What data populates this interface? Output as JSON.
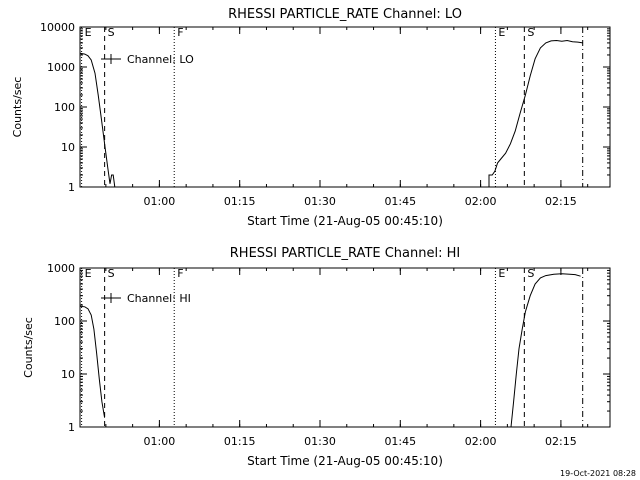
{
  "footer_timestamp": "19-Oct-2021 08:28",
  "colors": {
    "ink": "#000000",
    "paper": "#ffffff"
  },
  "chart_data": [
    {
      "type": "line",
      "title": "RHESSI PARTICLE_RATE Channel: LO",
      "xlabel": "Start Time (21-Aug-05 00:45:10)",
      "ylabel": "Counts/sec",
      "legend": "Channel: LO",
      "legend_position": "top-left",
      "y_scale": "log",
      "ylim": [
        1,
        10000
      ],
      "y_ticks": [
        {
          "value": 1,
          "label": "1"
        },
        {
          "value": 10,
          "label": "10"
        },
        {
          "value": 100,
          "label": "100"
        },
        {
          "value": 1000,
          "label": "1000"
        },
        {
          "value": 10000,
          "label": "10000"
        }
      ],
      "x_unit": "minutes since start",
      "xlim": [
        0,
        99
      ],
      "x_ticks": [
        {
          "value": 14.83,
          "label": "01:00"
        },
        {
          "value": 29.83,
          "label": "01:15"
        },
        {
          "value": 44.83,
          "label": "01:30"
        },
        {
          "value": 59.83,
          "label": "01:45"
        },
        {
          "value": 74.83,
          "label": "02:00"
        },
        {
          "value": 89.83,
          "label": "02:15"
        }
      ],
      "markers": [
        {
          "label": "E",
          "x": 0.3,
          "style": "dotted"
        },
        {
          "label": "S",
          "x": 4.6,
          "style": "dashed"
        },
        {
          "label": "F",
          "x": 17.6,
          "style": "dotted"
        },
        {
          "label": "E",
          "x": 77.6,
          "style": "dotted"
        },
        {
          "label": "S",
          "x": 83.0,
          "style": "dashed"
        },
        {
          "label": "",
          "x": 93.9,
          "style": "dashdot"
        }
      ],
      "series": [
        {
          "name": "Channel: LO",
          "segments": [
            [
              [
                0,
                2200
              ],
              [
                0.9,
                2100
              ],
              [
                1.5,
                1900
              ],
              [
                2.1,
                1500
              ],
              [
                2.8,
                700
              ],
              [
                3.4,
                200
              ],
              [
                4.0,
                50
              ],
              [
                4.6,
                12
              ],
              [
                5.2,
                3
              ],
              [
                5.6,
                1.2
              ],
              [
                5.9,
                2.0
              ],
              [
                6.2,
                2.0
              ],
              [
                6.5,
                1.0
              ]
            ],
            [
              [
                76.4,
                1.0
              ],
              [
                76.4,
                2.0
              ],
              [
                77.0,
                2.0
              ],
              [
                77.5,
                2.5
              ],
              [
                78.0,
                4.0
              ],
              [
                78.6,
                5.0
              ],
              [
                79.5,
                7
              ],
              [
                80.4,
                12
              ],
              [
                81.3,
                25
              ],
              [
                82.2,
                70
              ],
              [
                83.2,
                200
              ],
              [
                84.1,
                600
              ],
              [
                85.0,
                1600
              ],
              [
                86.0,
                3000
              ],
              [
                87.0,
                4000
              ],
              [
                88.0,
                4500
              ],
              [
                89.0,
                4600
              ],
              [
                90.0,
                4400
              ],
              [
                91.0,
                4600
              ],
              [
                92.0,
                4300
              ],
              [
                93.0,
                4200
              ],
              [
                93.9,
                4000
              ]
            ]
          ]
        }
      ]
    },
    {
      "type": "line",
      "title": "RHESSI PARTICLE_RATE Channel: HI",
      "xlabel": "Start Time (21-Aug-05 00:45:10)",
      "ylabel": "Counts/sec",
      "legend": "Channel: HI",
      "legend_position": "top-left",
      "y_scale": "log",
      "ylim": [
        1,
        1000
      ],
      "y_ticks": [
        {
          "value": 1,
          "label": "1"
        },
        {
          "value": 10,
          "label": "10"
        },
        {
          "value": 100,
          "label": "100"
        },
        {
          "value": 1000,
          "label": "1000"
        }
      ],
      "x_unit": "minutes since start",
      "xlim": [
        0,
        99
      ],
      "x_ticks": [
        {
          "value": 14.83,
          "label": "01:00"
        },
        {
          "value": 29.83,
          "label": "01:15"
        },
        {
          "value": 44.83,
          "label": "01:30"
        },
        {
          "value": 59.83,
          "label": "01:45"
        },
        {
          "value": 74.83,
          "label": "02:00"
        },
        {
          "value": 89.83,
          "label": "02:15"
        }
      ],
      "markers": [
        {
          "label": "E",
          "x": 0.3,
          "style": "dotted"
        },
        {
          "label": "S",
          "x": 4.6,
          "style": "dashed"
        },
        {
          "label": "F",
          "x": 17.6,
          "style": "dotted"
        },
        {
          "label": "E",
          "x": 77.6,
          "style": "dotted"
        },
        {
          "label": "S",
          "x": 83.0,
          "style": "dashed"
        },
        {
          "label": "",
          "x": 93.9,
          "style": "dashdot"
        }
      ],
      "series": [
        {
          "name": "Channel: HI",
          "segments": [
            [
              [
                0,
                190
              ],
              [
                0.9,
                185
              ],
              [
                1.5,
                170
              ],
              [
                2.1,
                130
              ],
              [
                2.6,
                70
              ],
              [
                3.1,
                25
              ],
              [
                3.6,
                8
              ],
              [
                4.1,
                3
              ],
              [
                4.6,
                1.5
              ]
            ],
            [
              [
                80.5,
                1.0
              ],
              [
                81.0,
                3
              ],
              [
                81.5,
                10
              ],
              [
                82.0,
                30
              ],
              [
                82.6,
                70
              ],
              [
                83.2,
                150
              ],
              [
                84.1,
                300
              ],
              [
                85.0,
                500
              ],
              [
                86.0,
                650
              ],
              [
                87.0,
                720
              ],
              [
                88.5,
                760
              ],
              [
                90.0,
                780
              ],
              [
                91.5,
                760
              ],
              [
                92.5,
                750
              ],
              [
                93.5,
                700
              ]
            ]
          ]
        }
      ]
    }
  ]
}
